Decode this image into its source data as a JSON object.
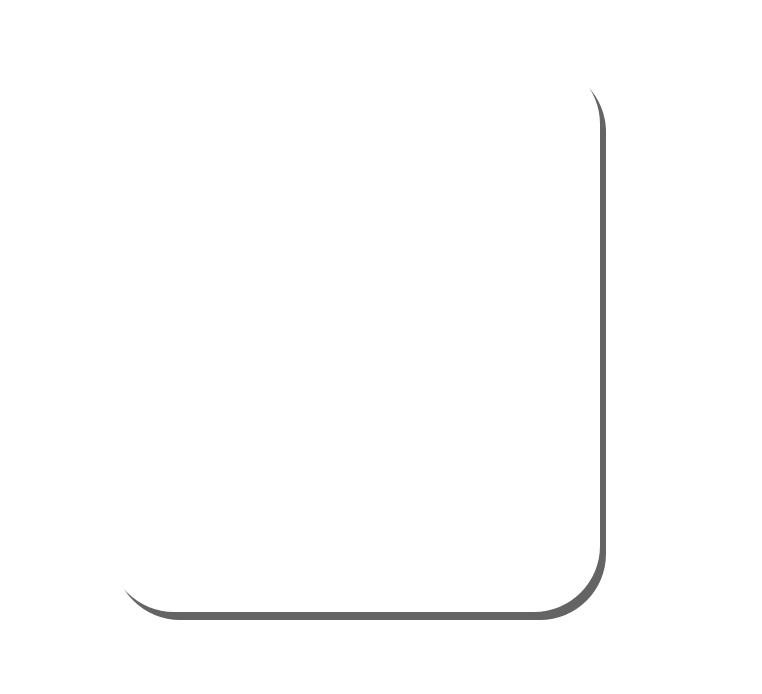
{
  "panel": {
    "background_color": "#ffffff",
    "shadow_color": "#646464"
  }
}
